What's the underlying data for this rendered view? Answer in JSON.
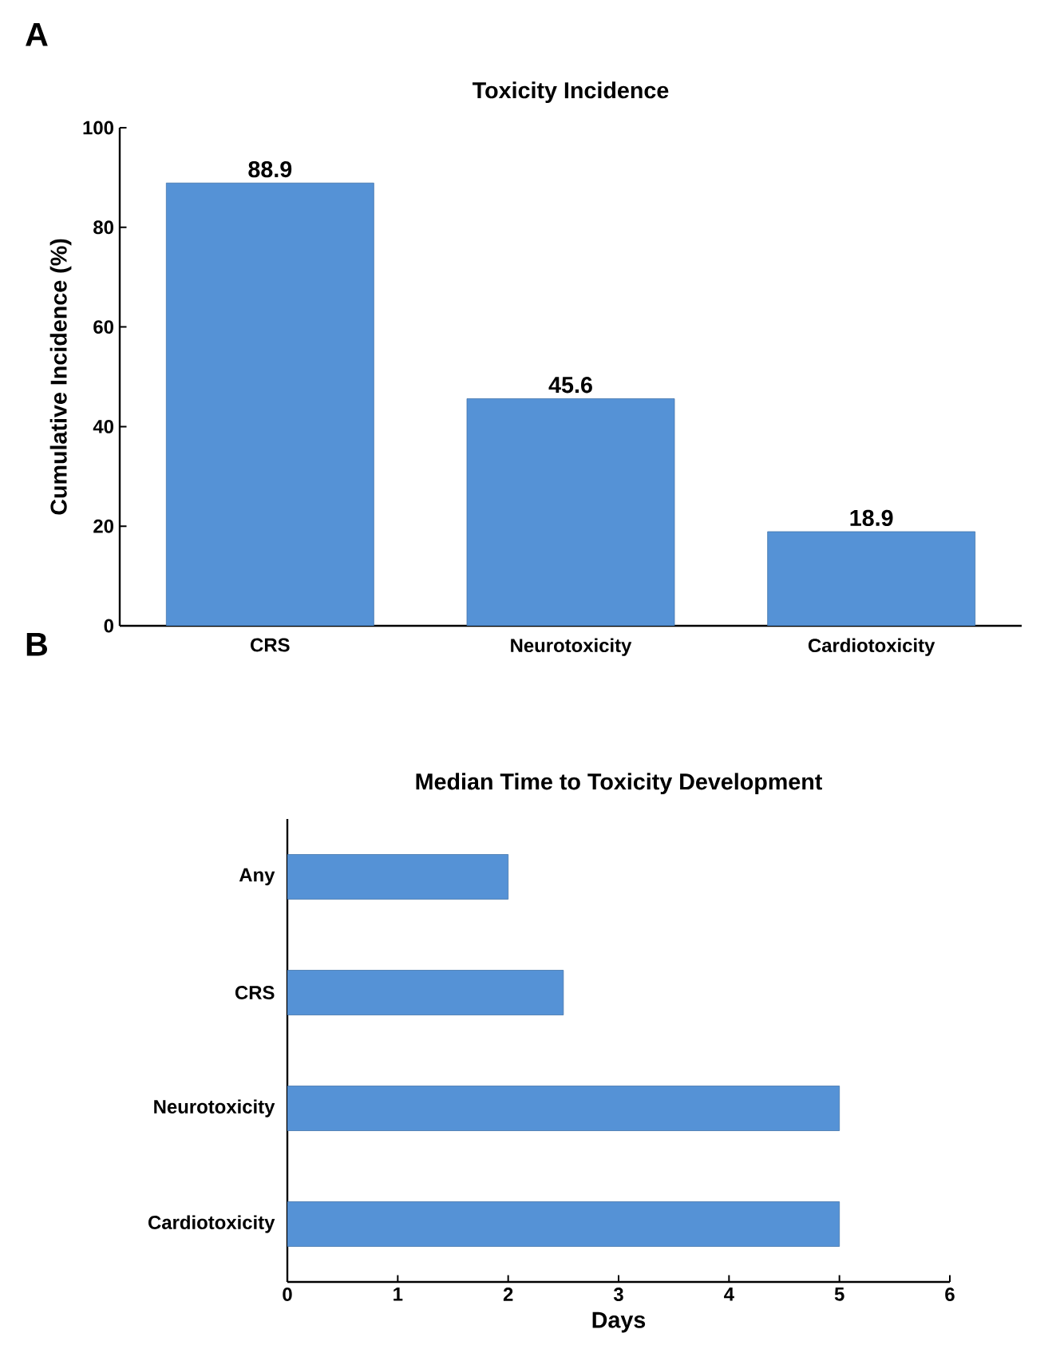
{
  "chart_data": [
    {
      "type": "bar",
      "title": "Toxicity Incidence",
      "ylabel": "Cumulative Incidence (%)",
      "categories": [
        "CRS",
        "Neurotoxicity",
        "Cardiotoxicity"
      ],
      "values": [
        88.9,
        45.6,
        18.9
      ],
      "color": "#5592d6",
      "ylim": [
        0,
        100
      ],
      "yticks": [
        0,
        20,
        40,
        60,
        80,
        100
      ],
      "data_labels": true,
      "annotations": [
        "A"
      ]
    },
    {
      "type": "bar",
      "orientation": "horizontal",
      "title": "Median Time to Toxicity Development",
      "xlabel": "Days",
      "categories": [
        "Any",
        "CRS",
        "Neurotoxicity",
        "Cardiotoxicity"
      ],
      "values": [
        2,
        2.5,
        5,
        5
      ],
      "color": "#5592d6",
      "xlim": [
        0,
        6
      ],
      "xticks": [
        0,
        1,
        2,
        3,
        4,
        5,
        6
      ],
      "annotations": [
        "B"
      ]
    }
  ]
}
